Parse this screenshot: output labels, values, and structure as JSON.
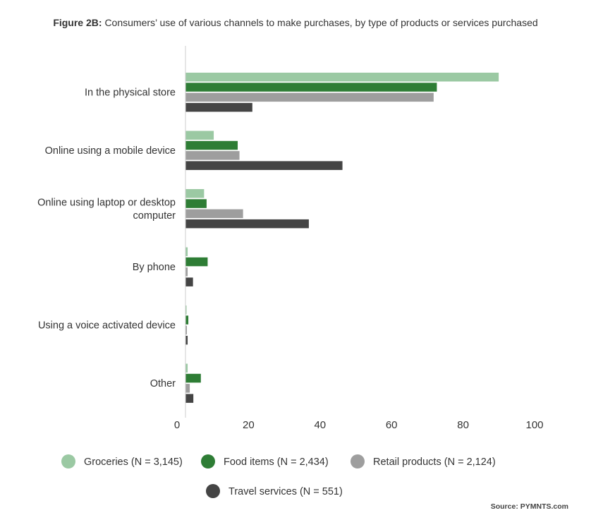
{
  "title": {
    "prefix": "Figure 2B:",
    "text": "Consumers’ use of various channels to make purchases, by type of products or services purchased"
  },
  "source": "Source: PYMNTS.com",
  "chart_data": {
    "type": "bar",
    "orientation": "horizontal",
    "categories": [
      [
        "In the physical store"
      ],
      [
        "Online using a mobile device"
      ],
      [
        "Online using laptop or desktop",
        "computer"
      ],
      [
        "By phone"
      ],
      [
        "Using a voice activated device"
      ],
      [
        "Other"
      ]
    ],
    "series": [
      {
        "name": "Groceries (N = 3,145)",
        "color": "#9bc9a3",
        "values": [
          87.6,
          7.9,
          5.2,
          0.6,
          0.3,
          0.6
        ]
      },
      {
        "name": "Food items (N = 2,434)",
        "color": "#2e7d35",
        "values": [
          70.3,
          14.6,
          5.9,
          6.2,
          0.8,
          4.3
        ]
      },
      {
        "name": "Retail products (N = 2,124)",
        "color": "#9e9e9e",
        "values": [
          69.4,
          15.1,
          16.1,
          0.6,
          0.4,
          1.2
        ]
      },
      {
        "name": "Travel services (N = 551)",
        "color": "#444444",
        "values": [
          18.7,
          43.9,
          34.5,
          2.1,
          0.6,
          2.2
        ]
      }
    ],
    "xlim": [
      0,
      100
    ],
    "xticks": [
      0,
      20,
      40,
      60,
      80,
      100
    ],
    "grid": false,
    "legend_position": "bottom"
  }
}
